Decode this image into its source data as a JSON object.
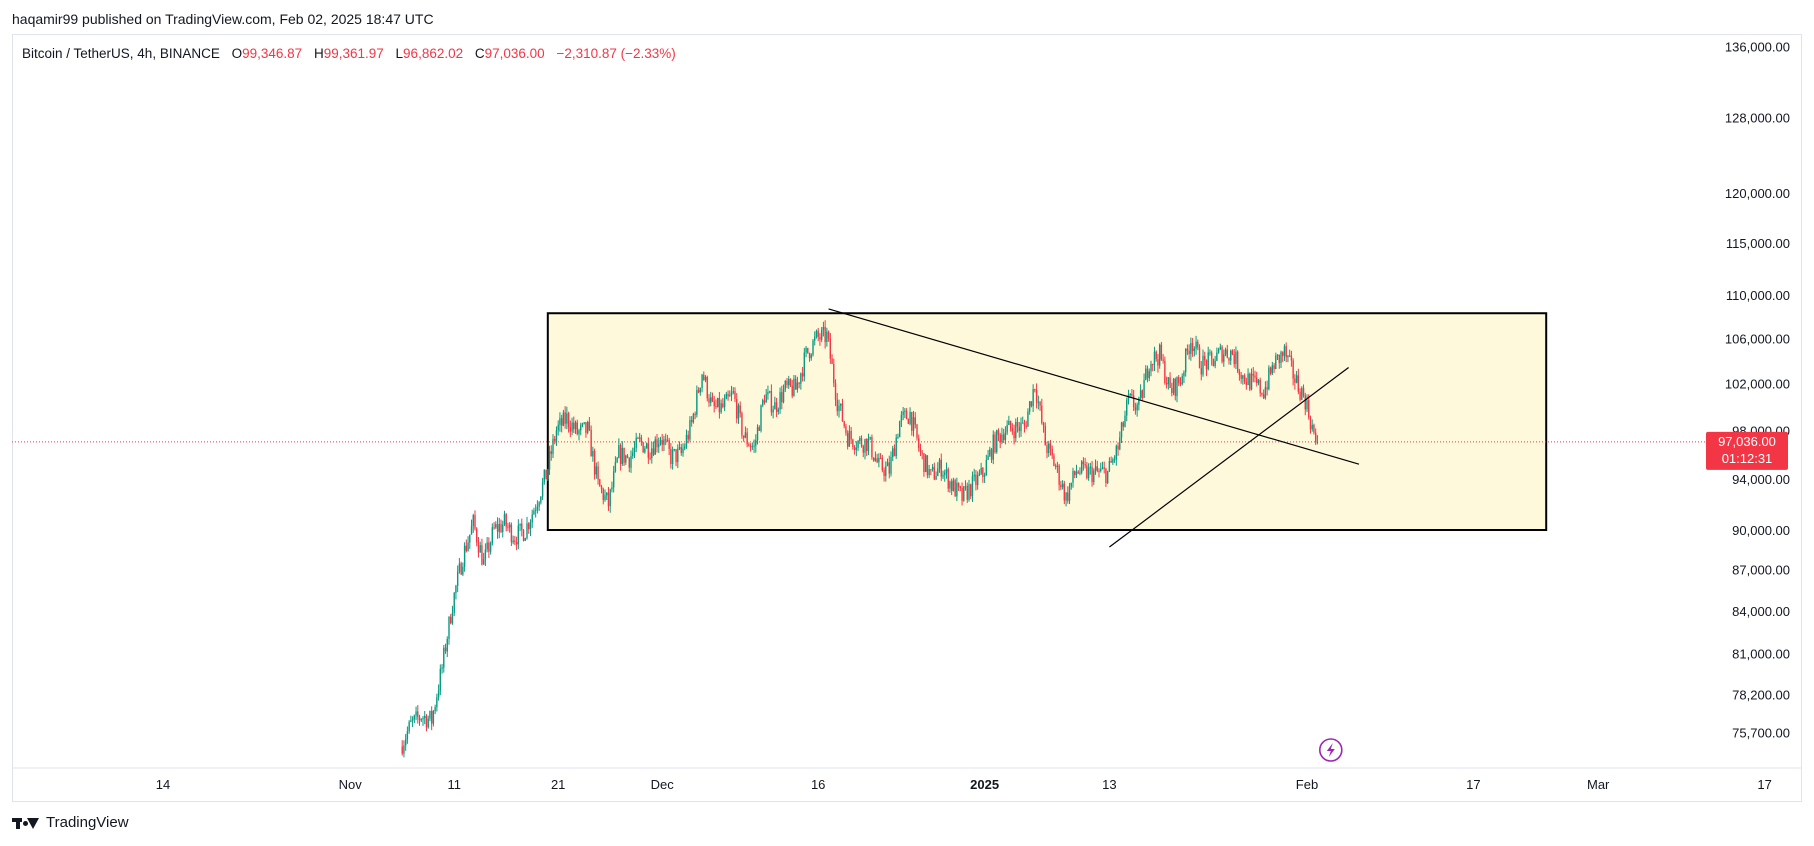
{
  "publish_line": "haqamir99 published on TradingView.com, Feb 02, 2025 18:47 UTC",
  "legend": {
    "symbol": "Bitcoin / TetherUS, 4h, BINANCE",
    "open_label": "O",
    "open": "99,346.87",
    "high_label": "H",
    "high": "99,361.97",
    "low_label": "L",
    "low": "96,862.02",
    "close_label": "C",
    "close": "97,036.00",
    "change": "−2,310.87 (−2.33%)"
  },
  "price_badge": {
    "price": "97,036.00",
    "countdown": "01:12:31"
  },
  "footer_brand": "TradingView",
  "colors": {
    "up": "#089981",
    "down": "#f23645",
    "box_fill": "#fff9dc",
    "box_stroke": "#000000",
    "trend": "#000000",
    "badge": "#f23645",
    "event_icon": "#9c27b0"
  },
  "icons": {
    "event": "lightning-bolt-icon",
    "logo": "tradingview-logo-icon"
  },
  "chart_data": {
    "type": "candlestick",
    "timeframe": "4h",
    "y_scale": "log",
    "y_ticks": [
      {
        "value": 136000,
        "label": "136,000.00"
      },
      {
        "value": 128000,
        "label": "128,000.00"
      },
      {
        "value": 120000,
        "label": "120,000.00"
      },
      {
        "value": 115000,
        "label": "115,000.00"
      },
      {
        "value": 110000,
        "label": "110,000.00"
      },
      {
        "value": 106000,
        "label": "106,000.00"
      },
      {
        "value": 102000,
        "label": "102,000.00"
      },
      {
        "value": 98000,
        "label": "98,000.00"
      },
      {
        "value": 94000,
        "label": "94,000.00"
      },
      {
        "value": 90000,
        "label": "90,000.00"
      },
      {
        "value": 87000,
        "label": "87,000.00"
      },
      {
        "value": 84000,
        "label": "84,000.00"
      },
      {
        "value": 81000,
        "label": "81,000.00"
      },
      {
        "value": 78200,
        "label": "78,200.00"
      },
      {
        "value": 75700,
        "label": "75,700.00"
      }
    ],
    "x_ticks": [
      {
        "date": "2024-10-14",
        "label": "14",
        "bold": false
      },
      {
        "date": "2024-11-01",
        "label": "Nov",
        "bold": false
      },
      {
        "date": "2024-11-11",
        "label": "11",
        "bold": false
      },
      {
        "date": "2024-11-21",
        "label": "21",
        "bold": false
      },
      {
        "date": "2024-12-01",
        "label": "Dec",
        "bold": false
      },
      {
        "date": "2024-12-16",
        "label": "16",
        "bold": false
      },
      {
        "date": "2025-01-01",
        "label": "2025",
        "bold": true
      },
      {
        "date": "2025-01-13",
        "label": "13",
        "bold": false
      },
      {
        "date": "2025-02-01",
        "label": "Feb",
        "bold": false
      },
      {
        "date": "2025-02-17",
        "label": "17",
        "bold": false
      },
      {
        "date": "2025-03-01",
        "label": "Mar",
        "bold": false
      },
      {
        "date": "2025-03-17",
        "label": "17",
        "bold": false
      }
    ],
    "last_close": 97036.0,
    "price_path": [
      [
        "2024-11-06",
        74800
      ],
      [
        "2024-11-07",
        76200
      ],
      [
        "2024-11-08",
        76800
      ],
      [
        "2024-11-09",
        76500
      ],
      [
        "2024-11-10",
        80000
      ],
      [
        "2024-11-11",
        84500
      ],
      [
        "2024-11-12",
        88000
      ],
      [
        "2024-11-13",
        90500
      ],
      [
        "2024-11-14",
        87500
      ],
      [
        "2024-11-15",
        90000
      ],
      [
        "2024-11-16",
        90500
      ],
      [
        "2024-11-17",
        89500
      ],
      [
        "2024-11-18",
        90000
      ],
      [
        "2024-11-19",
        92000
      ],
      [
        "2024-11-20",
        94300
      ],
      [
        "2024-11-21",
        98000
      ],
      [
        "2024-11-22",
        99000
      ],
      [
        "2024-11-23",
        97800
      ],
      [
        "2024-11-24",
        98000
      ],
      [
        "2024-11-25",
        93500
      ],
      [
        "2024-11-26",
        92000
      ],
      [
        "2024-11-27",
        96000
      ],
      [
        "2024-11-28",
        95700
      ],
      [
        "2024-11-29",
        97000
      ],
      [
        "2024-11-30",
        96500
      ],
      [
        "2024-12-01",
        97500
      ],
      [
        "2024-12-02",
        95800
      ],
      [
        "2024-12-03",
        96000
      ],
      [
        "2024-12-04",
        98500
      ],
      [
        "2024-12-05",
        103000
      ],
      [
        "2024-12-06",
        99800
      ],
      [
        "2024-12-07",
        99900
      ],
      [
        "2024-12-08",
        101000
      ],
      [
        "2024-12-09",
        97500
      ],
      [
        "2024-12-10",
        96500
      ],
      [
        "2024-12-11",
        101000
      ],
      [
        "2024-12-12",
        100000
      ],
      [
        "2024-12-13",
        101500
      ],
      [
        "2024-12-14",
        101500
      ],
      [
        "2024-12-15",
        104500
      ],
      [
        "2024-12-16",
        106000
      ],
      [
        "2024-12-17",
        106200
      ],
      [
        "2024-12-18",
        100500
      ],
      [
        "2024-12-19",
        97500
      ],
      [
        "2024-12-20",
        97000
      ],
      [
        "2024-12-21",
        97000
      ],
      [
        "2024-12-22",
        95000
      ],
      [
        "2024-12-23",
        94700
      ],
      [
        "2024-12-24",
        98700
      ],
      [
        "2024-12-25",
        99400
      ],
      [
        "2024-12-26",
        96000
      ],
      [
        "2024-12-27",
        94200
      ],
      [
        "2024-12-28",
        95000
      ],
      [
        "2024-12-29",
        93500
      ],
      [
        "2024-12-30",
        92500
      ],
      [
        "2024-12-31",
        93500
      ],
      [
        "2025-01-01",
        94400
      ],
      [
        "2025-01-02",
        96800
      ],
      [
        "2025-01-03",
        98000
      ],
      [
        "2025-01-04",
        98200
      ],
      [
        "2025-01-05",
        98300
      ],
      [
        "2025-01-06",
        102000
      ],
      [
        "2025-01-07",
        96900
      ],
      [
        "2025-01-08",
        95000
      ],
      [
        "2025-01-09",
        92500
      ],
      [
        "2025-01-10",
        94700
      ],
      [
        "2025-01-11",
        94500
      ],
      [
        "2025-01-12",
        94500
      ],
      [
        "2025-01-13",
        94500
      ],
      [
        "2025-01-14",
        96500
      ],
      [
        "2025-01-15",
        100500
      ],
      [
        "2025-01-16",
        99900
      ],
      [
        "2025-01-17",
        104000
      ],
      [
        "2025-01-18",
        104500
      ],
      [
        "2025-01-19",
        101300
      ],
      [
        "2025-01-20",
        102300
      ],
      [
        "2025-01-21",
        106000
      ],
      [
        "2025-01-22",
        103700
      ],
      [
        "2025-01-23",
        103900
      ],
      [
        "2025-01-24",
        104800
      ],
      [
        "2025-01-25",
        104700
      ],
      [
        "2025-01-26",
        102600
      ],
      [
        "2025-01-27",
        102000
      ],
      [
        "2025-01-28",
        101300
      ],
      [
        "2025-01-29",
        103700
      ],
      [
        "2025-01-30",
        104700
      ],
      [
        "2025-01-31",
        102400
      ],
      [
        "2025-02-01",
        100600
      ],
      [
        "2025-02-02",
        97036
      ]
    ],
    "annotations": {
      "range_box": {
        "start": "2024-11-20",
        "end": "2025-02-24",
        "top": 108300,
        "bottom": 90000
      },
      "descending_trendline": {
        "start": [
          "2024-12-17",
          108700
        ],
        "end": [
          "2025-02-06",
          95200
        ]
      },
      "ascending_trendline": {
        "start": [
          "2025-01-13",
          88700
        ],
        "end": [
          "2025-02-05",
          103400
        ]
      },
      "current_price_line": 97036.0,
      "event_marker_date": "2025-02-03"
    }
  }
}
